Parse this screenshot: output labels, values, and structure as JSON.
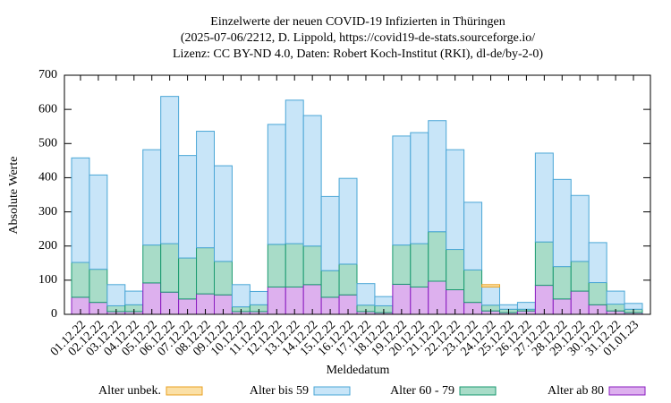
{
  "chart_data": {
    "type": "stacked-bar",
    "title": "Einzelwerte der neuen COVID-19 Infizierten in Thüringen",
    "subtitle": [
      "(2025-07-06/2212, D. Lippold, https://covid19-de-stats.sourceforge.io/",
      "Lizenz: CC BY-ND 4.0, Daten: Robert Koch-Institut (RKI), dl-de/by-2-0)"
    ],
    "x_label": "Meldedatum",
    "y_label": "Absolute Werte",
    "categories": [
      "01.12.22",
      "02.12.22",
      "03.12.22",
      "04.12.22",
      "05.12.22",
      "06.12.22",
      "07.12.22",
      "08.12.22",
      "09.12.22",
      "10.12.22",
      "11.12.22",
      "12.12.22",
      "13.12.22",
      "14.12.22",
      "15.12.22",
      "16.12.22",
      "17.12.22",
      "18.12.22",
      "19.12.22",
      "20.12.22",
      "21.12.22",
      "22.12.22",
      "23.12.22",
      "24.12.22",
      "25.12.22",
      "26.12.22",
      "27.12.22",
      "28.12.22",
      "29.12.22",
      "30.12.22",
      "31.12.22",
      "01.01.23"
    ],
    "series": [
      {
        "name": "Alter unbek.",
        "color": "#fbe0a6",
        "stroke": "#e8a020",
        "values": [
          0,
          0,
          0,
          0,
          0,
          0,
          0,
          0,
          0,
          0,
          0,
          0,
          0,
          0,
          0,
          0,
          0,
          0,
          0,
          0,
          0,
          0,
          0,
          7,
          0,
          0,
          0,
          0,
          0,
          0,
          0,
          0
        ]
      },
      {
        "name": "Alter bis 59",
        "color": "#c8e5f8",
        "stroke": "#4aa6d6",
        "values": [
          306,
          276,
          62,
          40,
          279,
          431,
          300,
          341,
          280,
          65,
          39,
          351,
          420,
          382,
          217,
          251,
          63,
          27,
          319,
          325,
          325,
          292,
          198,
          53,
          13,
          20,
          260,
          255,
          193,
          117,
          38,
          17
        ]
      },
      {
        "name": "Alter 60 - 79",
        "color": "#a8dcc8",
        "stroke": "#1a9a70",
        "values": [
          102,
          97,
          17,
          20,
          111,
          142,
          120,
          135,
          98,
          14,
          20,
          125,
          127,
          113,
          78,
          90,
          19,
          20,
          115,
          127,
          145,
          118,
          95,
          17,
          10,
          5,
          127,
          95,
          87,
          65,
          20,
          10
        ]
      },
      {
        "name": "Alter ab 80",
        "color": "#ddb0ee",
        "stroke": "#8a1cc0",
        "values": [
          50,
          35,
          8,
          8,
          92,
          65,
          45,
          60,
          57,
          8,
          8,
          80,
          80,
          87,
          50,
          57,
          8,
          5,
          88,
          80,
          97,
          72,
          35,
          10,
          5,
          10,
          85,
          45,
          68,
          28,
          10,
          5
        ]
      }
    ],
    "ylim": [
      0,
      700
    ],
    "yticks": [
      0,
      100,
      200,
      300,
      400,
      500,
      600,
      700
    ]
  }
}
